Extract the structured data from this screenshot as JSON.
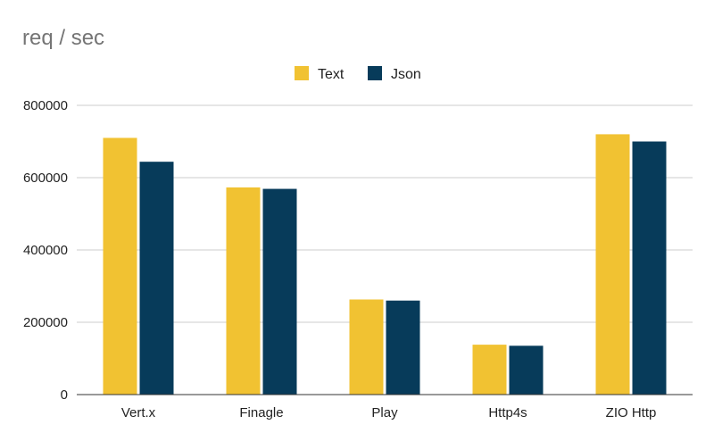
{
  "chart_data": {
    "type": "bar",
    "title": "req / sec",
    "xlabel": "",
    "ylabel": "",
    "categories": [
      "Vert.x",
      "Finagle",
      "Play",
      "Http4s",
      "ZIO Http"
    ],
    "series": [
      {
        "name": "Text",
        "color": "#f1c232",
        "values": [
          710000,
          573000,
          263000,
          138000,
          720000
        ]
      },
      {
        "name": "Json",
        "color": "#073b5a",
        "values": [
          644000,
          569000,
          260000,
          135000,
          700000
        ]
      }
    ],
    "ylim": [
      0,
      800000
    ],
    "yticks": [
      0,
      200000,
      400000,
      600000,
      800000
    ],
    "ytick_labels": [
      "0",
      "200000",
      "400000",
      "600000",
      "800000"
    ],
    "grid": true,
    "legend_position": "top-center"
  }
}
